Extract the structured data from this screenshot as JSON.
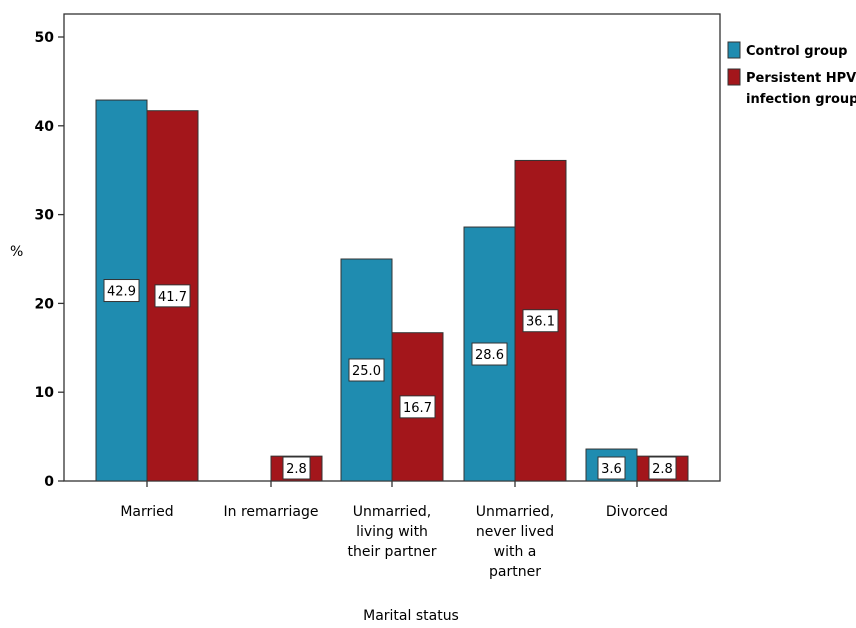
{
  "chart_data": {
    "type": "bar",
    "categories": [
      "Married",
      "In remarriage",
      "Unmarried, living with their partner",
      "Unmarried, never lived with a partner",
      "Divorced"
    ],
    "category_lines": [
      [
        "Married"
      ],
      [
        "In remarriage"
      ],
      [
        "Unmarried,",
        "living with",
        "their partner"
      ],
      [
        "Unmarried,",
        "never lived",
        "with a",
        "partner"
      ],
      [
        "Divorced"
      ]
    ],
    "series": [
      {
        "name": "Control group",
        "color": "#1f8cb0",
        "values": [
          42.9,
          0,
          25.0,
          28.6,
          3.6
        ],
        "labels": [
          "42.9",
          "",
          "25.0",
          "28.6",
          "3.6"
        ]
      },
      {
        "name": "Persistent HPV infection group",
        "legend_lines": [
          "Persistent HPV",
          "infection group"
        ],
        "color": "#a3161b",
        "values": [
          41.7,
          2.8,
          16.7,
          36.1,
          2.8
        ],
        "labels": [
          "41.7",
          "2.8",
          "16.7",
          "36.1",
          "2.8"
        ]
      }
    ],
    "title": "",
    "xlabel": "Marital status",
    "ylabel": "%",
    "ylim": [
      0,
      50
    ],
    "yticks": [
      "0",
      "10",
      "20",
      "30",
      "40",
      "50"
    ],
    "grid": false,
    "legend_position": "right"
  }
}
